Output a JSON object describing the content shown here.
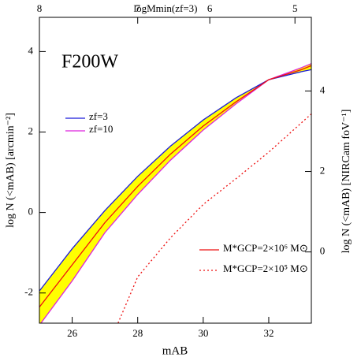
{
  "chart_data": {
    "type": "line",
    "annotation": "F200W",
    "annotation_color": "#ee1111",
    "x_label": "mAB",
    "y_label": "log N (<mAB) [arcmin⁻²]",
    "y2_label": "log N (<mAB) [NIRCam foV⁻¹]",
    "x2_label": "logMmin(zf=3)",
    "x2_color": "#1a1adb",
    "xlim": [
      25,
      33.3
    ],
    "xticks": [
      26,
      28,
      30,
      32
    ],
    "x2ticks": [
      {
        "value": 25,
        "label": "8"
      },
      {
        "value": 28,
        "label": "7"
      },
      {
        "value": 30.2,
        "label": "6"
      },
      {
        "value": 32.8,
        "label": "5"
      }
    ],
    "ylim": [
      -2.75,
      4.85
    ],
    "yticks": [
      -2,
      0,
      2,
      4
    ],
    "y2lim": [
      -1.77,
      5.83
    ],
    "y2ticks": [
      0,
      2,
      4
    ],
    "band_color": "#ffff00",
    "x": [
      25,
      26,
      27,
      28,
      29,
      30,
      31,
      32,
      33,
      33.3
    ],
    "series": [
      {
        "name": "zf=3",
        "color": "#1a1adb",
        "values": [
          -1.95,
          -0.9,
          0.05,
          0.9,
          1.65,
          2.3,
          2.85,
          3.3,
          3.5,
          3.55
        ]
      },
      {
        "name": "zf=10",
        "color": "#dd22dd",
        "values": [
          -2.8,
          -1.7,
          -0.5,
          0.45,
          1.3,
          2.05,
          2.7,
          3.3,
          3.6,
          3.7
        ]
      },
      {
        "name": "M*GCP=2×10⁶ M⊙",
        "color": "#ee1111",
        "values": [
          -2.35,
          -1.3,
          -0.25,
          0.65,
          1.45,
          2.15,
          2.75,
          3.3,
          3.55,
          3.65
        ]
      },
      {
        "name": "M*GCP=2×10⁵ M⊙",
        "color": "#ee1111",
        "dash": "dotted",
        "x": [
          27.4,
          28,
          29,
          30,
          31,
          32,
          33.3
        ],
        "values": [
          -2.75,
          -1.6,
          -0.63,
          0.2,
          0.84,
          1.5,
          2.45
        ]
      }
    ]
  }
}
